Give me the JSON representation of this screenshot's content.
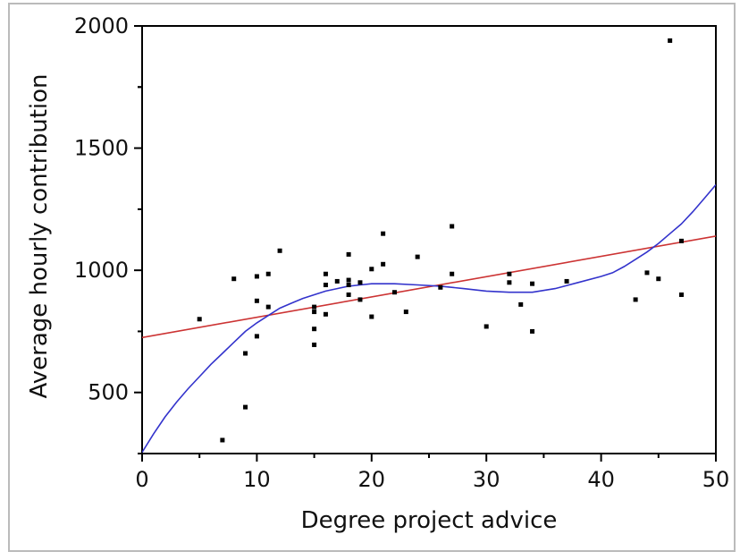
{
  "chart_data": {
    "type": "scatter",
    "xlabel": "Degree project advice",
    "ylabel": "Average hourly contribution",
    "xlim": [
      0,
      50
    ],
    "ylim": [
      250,
      2000
    ],
    "x_ticks": [
      0,
      10,
      20,
      30,
      40,
      50
    ],
    "y_ticks": [
      500,
      1000,
      1500,
      2000
    ],
    "grid": false,
    "points": [
      {
        "x": 5,
        "y": 800
      },
      {
        "x": 7,
        "y": 305
      },
      {
        "x": 8,
        "y": 965
      },
      {
        "x": 9,
        "y": 660
      },
      {
        "x": 9,
        "y": 440
      },
      {
        "x": 10,
        "y": 975
      },
      {
        "x": 10,
        "y": 875
      },
      {
        "x": 10,
        "y": 730
      },
      {
        "x": 11,
        "y": 985
      },
      {
        "x": 11,
        "y": 850
      },
      {
        "x": 12,
        "y": 1080
      },
      {
        "x": 15,
        "y": 850
      },
      {
        "x": 15,
        "y": 830
      },
      {
        "x": 15,
        "y": 760
      },
      {
        "x": 15,
        "y": 695
      },
      {
        "x": 16,
        "y": 985
      },
      {
        "x": 16,
        "y": 940
      },
      {
        "x": 16,
        "y": 820
      },
      {
        "x": 17,
        "y": 955
      },
      {
        "x": 18,
        "y": 1065
      },
      {
        "x": 18,
        "y": 960
      },
      {
        "x": 18,
        "y": 940
      },
      {
        "x": 18,
        "y": 900
      },
      {
        "x": 19,
        "y": 950
      },
      {
        "x": 19,
        "y": 880
      },
      {
        "x": 20,
        "y": 1005
      },
      {
        "x": 20,
        "y": 810
      },
      {
        "x": 21,
        "y": 1150
      },
      {
        "x": 21,
        "y": 1025
      },
      {
        "x": 22,
        "y": 910
      },
      {
        "x": 23,
        "y": 830
      },
      {
        "x": 24,
        "y": 1055
      },
      {
        "x": 26,
        "y": 930
      },
      {
        "x": 27,
        "y": 1180
      },
      {
        "x": 27,
        "y": 985
      },
      {
        "x": 30,
        "y": 770
      },
      {
        "x": 32,
        "y": 985
      },
      {
        "x": 32,
        "y": 950
      },
      {
        "x": 33,
        "y": 860
      },
      {
        "x": 34,
        "y": 945
      },
      {
        "x": 34,
        "y": 750
      },
      {
        "x": 37,
        "y": 955
      },
      {
        "x": 43,
        "y": 880
      },
      {
        "x": 44,
        "y": 990
      },
      {
        "x": 45,
        "y": 965
      },
      {
        "x": 46,
        "y": 1940
      },
      {
        "x": 47,
        "y": 1120
      },
      {
        "x": 47,
        "y": 900
      }
    ],
    "lines": [
      {
        "color": "#cc3333",
        "x": [
          0,
          50
        ],
        "y": [
          725,
          1140
        ]
      },
      {
        "color": "#3333cc",
        "x": [
          0,
          1,
          2,
          3,
          4,
          5,
          6,
          7,
          8,
          9,
          10,
          11,
          12,
          13,
          14,
          15,
          16,
          17,
          18,
          19,
          20,
          22,
          24,
          26,
          28,
          30,
          32,
          34,
          36,
          38,
          40,
          41,
          42,
          43,
          44,
          45,
          46,
          47,
          48,
          49,
          50
        ],
        "y": [
          255,
          330,
          400,
          460,
          515,
          565,
          615,
          660,
          705,
          750,
          785,
          815,
          845,
          865,
          885,
          900,
          915,
          925,
          935,
          940,
          945,
          945,
          940,
          935,
          925,
          915,
          910,
          910,
          925,
          950,
          975,
          990,
          1015,
          1045,
          1075,
          1110,
          1150,
          1190,
          1240,
          1295,
          1350
        ]
      }
    ],
    "colors": {
      "points": "#000000",
      "frame": "#000000",
      "background": "#ffffff"
    }
  }
}
